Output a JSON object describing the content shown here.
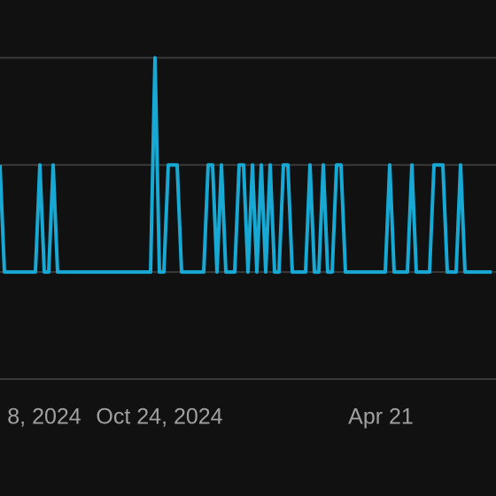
{
  "chart_data": {
    "type": "line",
    "categories": [
      null,
      null,
      null,
      null,
      null,
      null,
      null,
      null,
      null,
      null,
      "8, 2024",
      null,
      null,
      null,
      null,
      null,
      null,
      null,
      null,
      null,
      null,
      null,
      null,
      null,
      null,
      null,
      null,
      null,
      null,
      null,
      null,
      null,
      null,
      null,
      null,
      null,
      "Oct 24, 2024",
      null,
      null,
      null,
      null,
      null,
      null,
      null,
      null,
      null,
      null,
      null,
      null,
      null,
      null,
      null,
      null,
      null,
      null,
      null,
      null,
      null,
      null,
      null,
      null,
      null,
      null,
      null,
      null,
      null,
      null,
      null,
      null,
      null,
      null,
      null,
      null,
      null,
      null,
      null,
      null,
      null,
      null,
      null,
      null,
      null,
      null,
      null,
      null,
      null,
      "Apr 21",
      null,
      null,
      null,
      null,
      null,
      null,
      null,
      null,
      null,
      null,
      null,
      null,
      null,
      null,
      null,
      null,
      null,
      null,
      null,
      null,
      null,
      null,
      null,
      null,
      null
    ],
    "series": [
      {
        "color": "#17a9d3",
        "values": [
          1,
          0,
          0,
          0,
          0,
          0,
          0,
          0,
          0,
          1,
          0,
          0,
          1,
          0,
          0,
          0,
          0,
          0,
          0,
          0,
          0,
          0,
          0,
          0,
          0,
          0,
          0,
          0,
          0,
          0,
          0,
          0,
          0,
          0,
          0,
          2,
          0,
          0,
          1,
          1,
          1,
          0,
          0,
          0,
          0,
          0,
          0,
          1,
          1,
          0,
          1,
          0,
          0,
          0,
          1,
          1,
          0,
          1,
          0,
          1,
          0,
          1,
          0,
          0,
          1,
          1,
          0,
          0,
          0,
          0,
          1,
          0,
          0,
          1,
          0,
          0,
          1,
          1,
          0,
          0,
          0,
          0,
          0,
          0,
          0,
          0,
          0,
          0,
          1,
          0,
          0,
          0,
          0,
          1,
          0,
          0,
          0,
          0,
          1,
          1,
          1,
          0,
          0,
          0,
          1,
          0,
          0,
          0,
          0,
          0,
          0,
          0
        ]
      }
    ],
    "ylim": [
      -1,
      2.54
    ],
    "yticks": [
      -1,
      0,
      1,
      2
    ],
    "grid": true
  }
}
